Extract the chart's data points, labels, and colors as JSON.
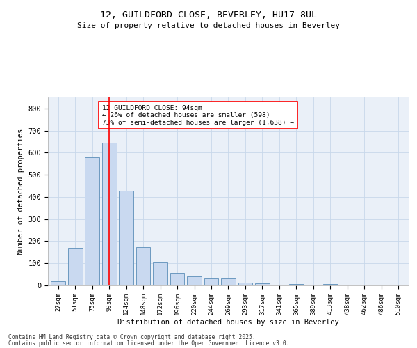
{
  "title1": "12, GUILDFORD CLOSE, BEVERLEY, HU17 8UL",
  "title2": "Size of property relative to detached houses in Beverley",
  "xlabel": "Distribution of detached houses by size in Beverley",
  "ylabel": "Number of detached properties",
  "categories": [
    "27sqm",
    "51sqm",
    "75sqm",
    "99sqm",
    "124sqm",
    "148sqm",
    "172sqm",
    "196sqm",
    "220sqm",
    "244sqm",
    "269sqm",
    "293sqm",
    "317sqm",
    "341sqm",
    "365sqm",
    "389sqm",
    "413sqm",
    "438sqm",
    "462sqm",
    "486sqm",
    "510sqm"
  ],
  "values": [
    20,
    168,
    580,
    645,
    428,
    172,
    103,
    58,
    42,
    33,
    30,
    13,
    8,
    0,
    7,
    0,
    5,
    0,
    0,
    0,
    1
  ],
  "bar_color": "#c9d9f0",
  "bar_edge_color": "#5b8db8",
  "vline_x": 3,
  "vline_color": "red",
  "annotation_text": "12 GUILDFORD CLOSE: 94sqm\n← 26% of detached houses are smaller (598)\n73% of semi-detached houses are larger (1,638) →",
  "annotation_box_color": "white",
  "annotation_box_edge": "red",
  "ylim": [
    0,
    850
  ],
  "yticks": [
    0,
    100,
    200,
    300,
    400,
    500,
    600,
    700,
    800
  ],
  "grid_color": "#c8d8ea",
  "background_color": "#eaf0f8",
  "footer1": "Contains HM Land Registry data © Crown copyright and database right 2025.",
  "footer2": "Contains public sector information licensed under the Open Government Licence v3.0."
}
